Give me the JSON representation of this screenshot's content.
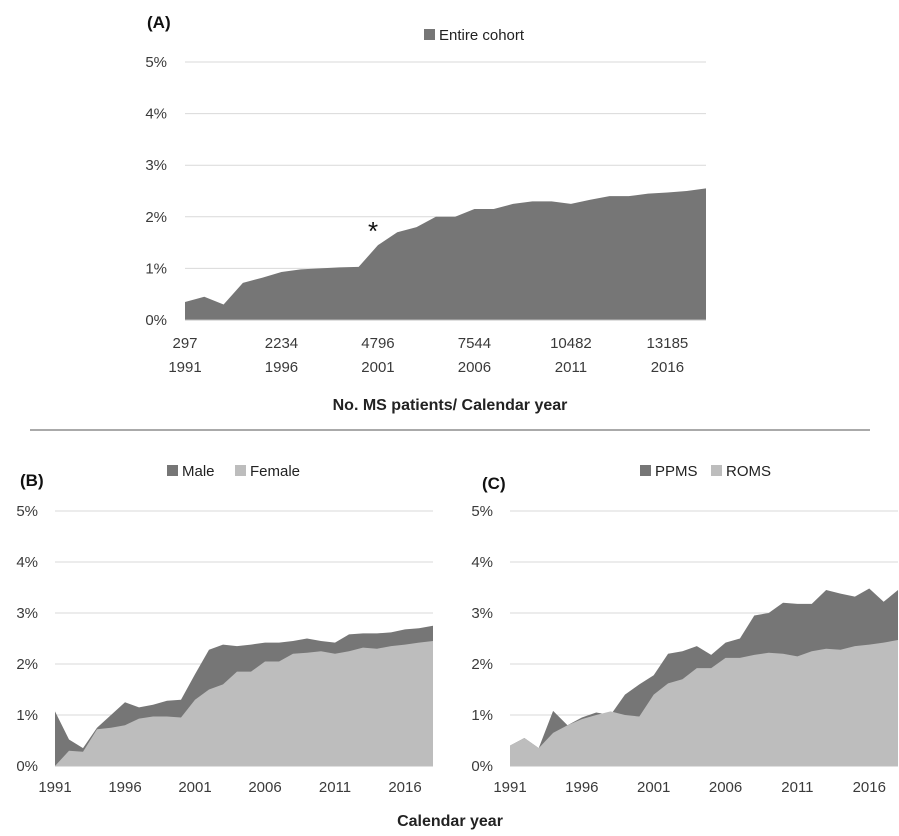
{
  "chart_data": [
    {
      "panel": "(A)",
      "type": "area",
      "x": [
        1991,
        1992,
        1993,
        1994,
        1995,
        1996,
        1997,
        1998,
        1999,
        2000,
        2001,
        2002,
        2003,
        2004,
        2005,
        2006,
        2007,
        2008,
        2009,
        2010,
        2011,
        2012,
        2013,
        2014,
        2015,
        2016,
        2017,
        2018
      ],
      "series": [
        {
          "name": "Entire cohort",
          "color": "#767676",
          "values": [
            0.35,
            0.45,
            0.3,
            0.72,
            0.82,
            0.93,
            0.98,
            1.0,
            1.02,
            1.03,
            1.45,
            1.7,
            1.8,
            2.0,
            2.0,
            2.15,
            2.15,
            2.25,
            2.3,
            2.3,
            2.25,
            2.33,
            2.4,
            2.4,
            2.45,
            2.47,
            2.5,
            2.55
          ]
        }
      ],
      "xtick_years": [
        "1991",
        "1996",
        "2001",
        "2006",
        "2011",
        "2016"
      ],
      "xtick_counts": [
        "297",
        "2234",
        "4796",
        "7544",
        "10482",
        "13185"
      ],
      "yticks": [
        "0%",
        "1%",
        "2%",
        "3%",
        "4%",
        "5%"
      ],
      "ylim": [
        0,
        5
      ],
      "xlabel": "No. MS patients/ Calendar year",
      "annotation": {
        "text": "*",
        "x": 2001
      },
      "legend": "top"
    },
    {
      "panel": "(B)",
      "type": "area",
      "x": [
        1991,
        1992,
        1993,
        1994,
        1995,
        1996,
        1997,
        1998,
        1999,
        2000,
        2001,
        2002,
        2003,
        2004,
        2005,
        2006,
        2007,
        2008,
        2009,
        2010,
        2011,
        2012,
        2013,
        2014,
        2015,
        2016,
        2017,
        2018
      ],
      "series": [
        {
          "name": "Male",
          "color": "#767676",
          "values": [
            1.07,
            0.52,
            0.35,
            0.75,
            1.0,
            1.25,
            1.15,
            1.2,
            1.28,
            1.3,
            1.8,
            2.28,
            2.38,
            2.35,
            2.38,
            2.42,
            2.42,
            2.45,
            2.5,
            2.45,
            2.42,
            2.58,
            2.6,
            2.6,
            2.62,
            2.68,
            2.7,
            2.75
          ]
        },
        {
          "name": "Female",
          "color": "#bdbdbd",
          "values": [
            0.0,
            0.3,
            0.28,
            0.72,
            0.75,
            0.8,
            0.93,
            0.97,
            0.97,
            0.95,
            1.3,
            1.5,
            1.6,
            1.85,
            1.85,
            2.05,
            2.05,
            2.2,
            2.22,
            2.25,
            2.2,
            2.25,
            2.32,
            2.3,
            2.35,
            2.38,
            2.42,
            2.45
          ]
        }
      ],
      "xtick_years": [
        "1991",
        "1996",
        "2001",
        "2006",
        "2011",
        "2016"
      ],
      "yticks": [
        "0%",
        "1%",
        "2%",
        "3%",
        "4%",
        "5%"
      ],
      "ylim": [
        0,
        5
      ],
      "legend": "top"
    },
    {
      "panel": "(C)",
      "type": "area",
      "x": [
        1991,
        1992,
        1993,
        1994,
        1995,
        1996,
        1997,
        1998,
        1999,
        2000,
        2001,
        2002,
        2003,
        2004,
        2005,
        2006,
        2007,
        2008,
        2009,
        2010,
        2011,
        2012,
        2013,
        2014,
        2015,
        2016,
        2017,
        2018
      ],
      "series": [
        {
          "name": "PPMS",
          "color": "#767676",
          "values": [
            0.4,
            0.55,
            0.35,
            1.08,
            0.8,
            0.95,
            1.05,
            1.0,
            1.4,
            1.6,
            1.78,
            2.2,
            2.25,
            2.35,
            2.18,
            2.42,
            2.5,
            2.95,
            3.0,
            3.2,
            3.18,
            3.18,
            3.45,
            3.38,
            3.32,
            3.48,
            3.22,
            3.45
          ]
        },
        {
          "name": "ROMS",
          "color": "#bdbdbd",
          "values": [
            0.4,
            0.55,
            0.35,
            0.65,
            0.8,
            0.92,
            1.0,
            1.07,
            1.0,
            0.97,
            1.4,
            1.62,
            1.7,
            1.92,
            1.92,
            2.12,
            2.12,
            2.18,
            2.22,
            2.2,
            2.15,
            2.25,
            2.3,
            2.28,
            2.35,
            2.38,
            2.42,
            2.47
          ]
        }
      ],
      "xtick_years": [
        "1991",
        "1996",
        "2001",
        "2006",
        "2011",
        "2016"
      ],
      "yticks": [
        "0%",
        "1%",
        "2%",
        "3%",
        "4%",
        "5%"
      ],
      "ylim": [
        0,
        5
      ],
      "legend": "top"
    }
  ],
  "shared_xlabel": "Calendar year"
}
